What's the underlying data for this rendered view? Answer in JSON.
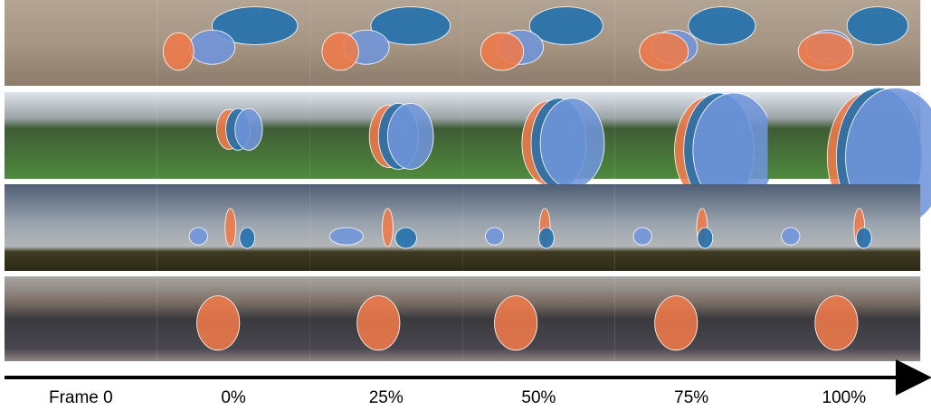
{
  "columns": [
    "Frame 0",
    "0%",
    "25%",
    "50%",
    "75%",
    "100%"
  ]
}
